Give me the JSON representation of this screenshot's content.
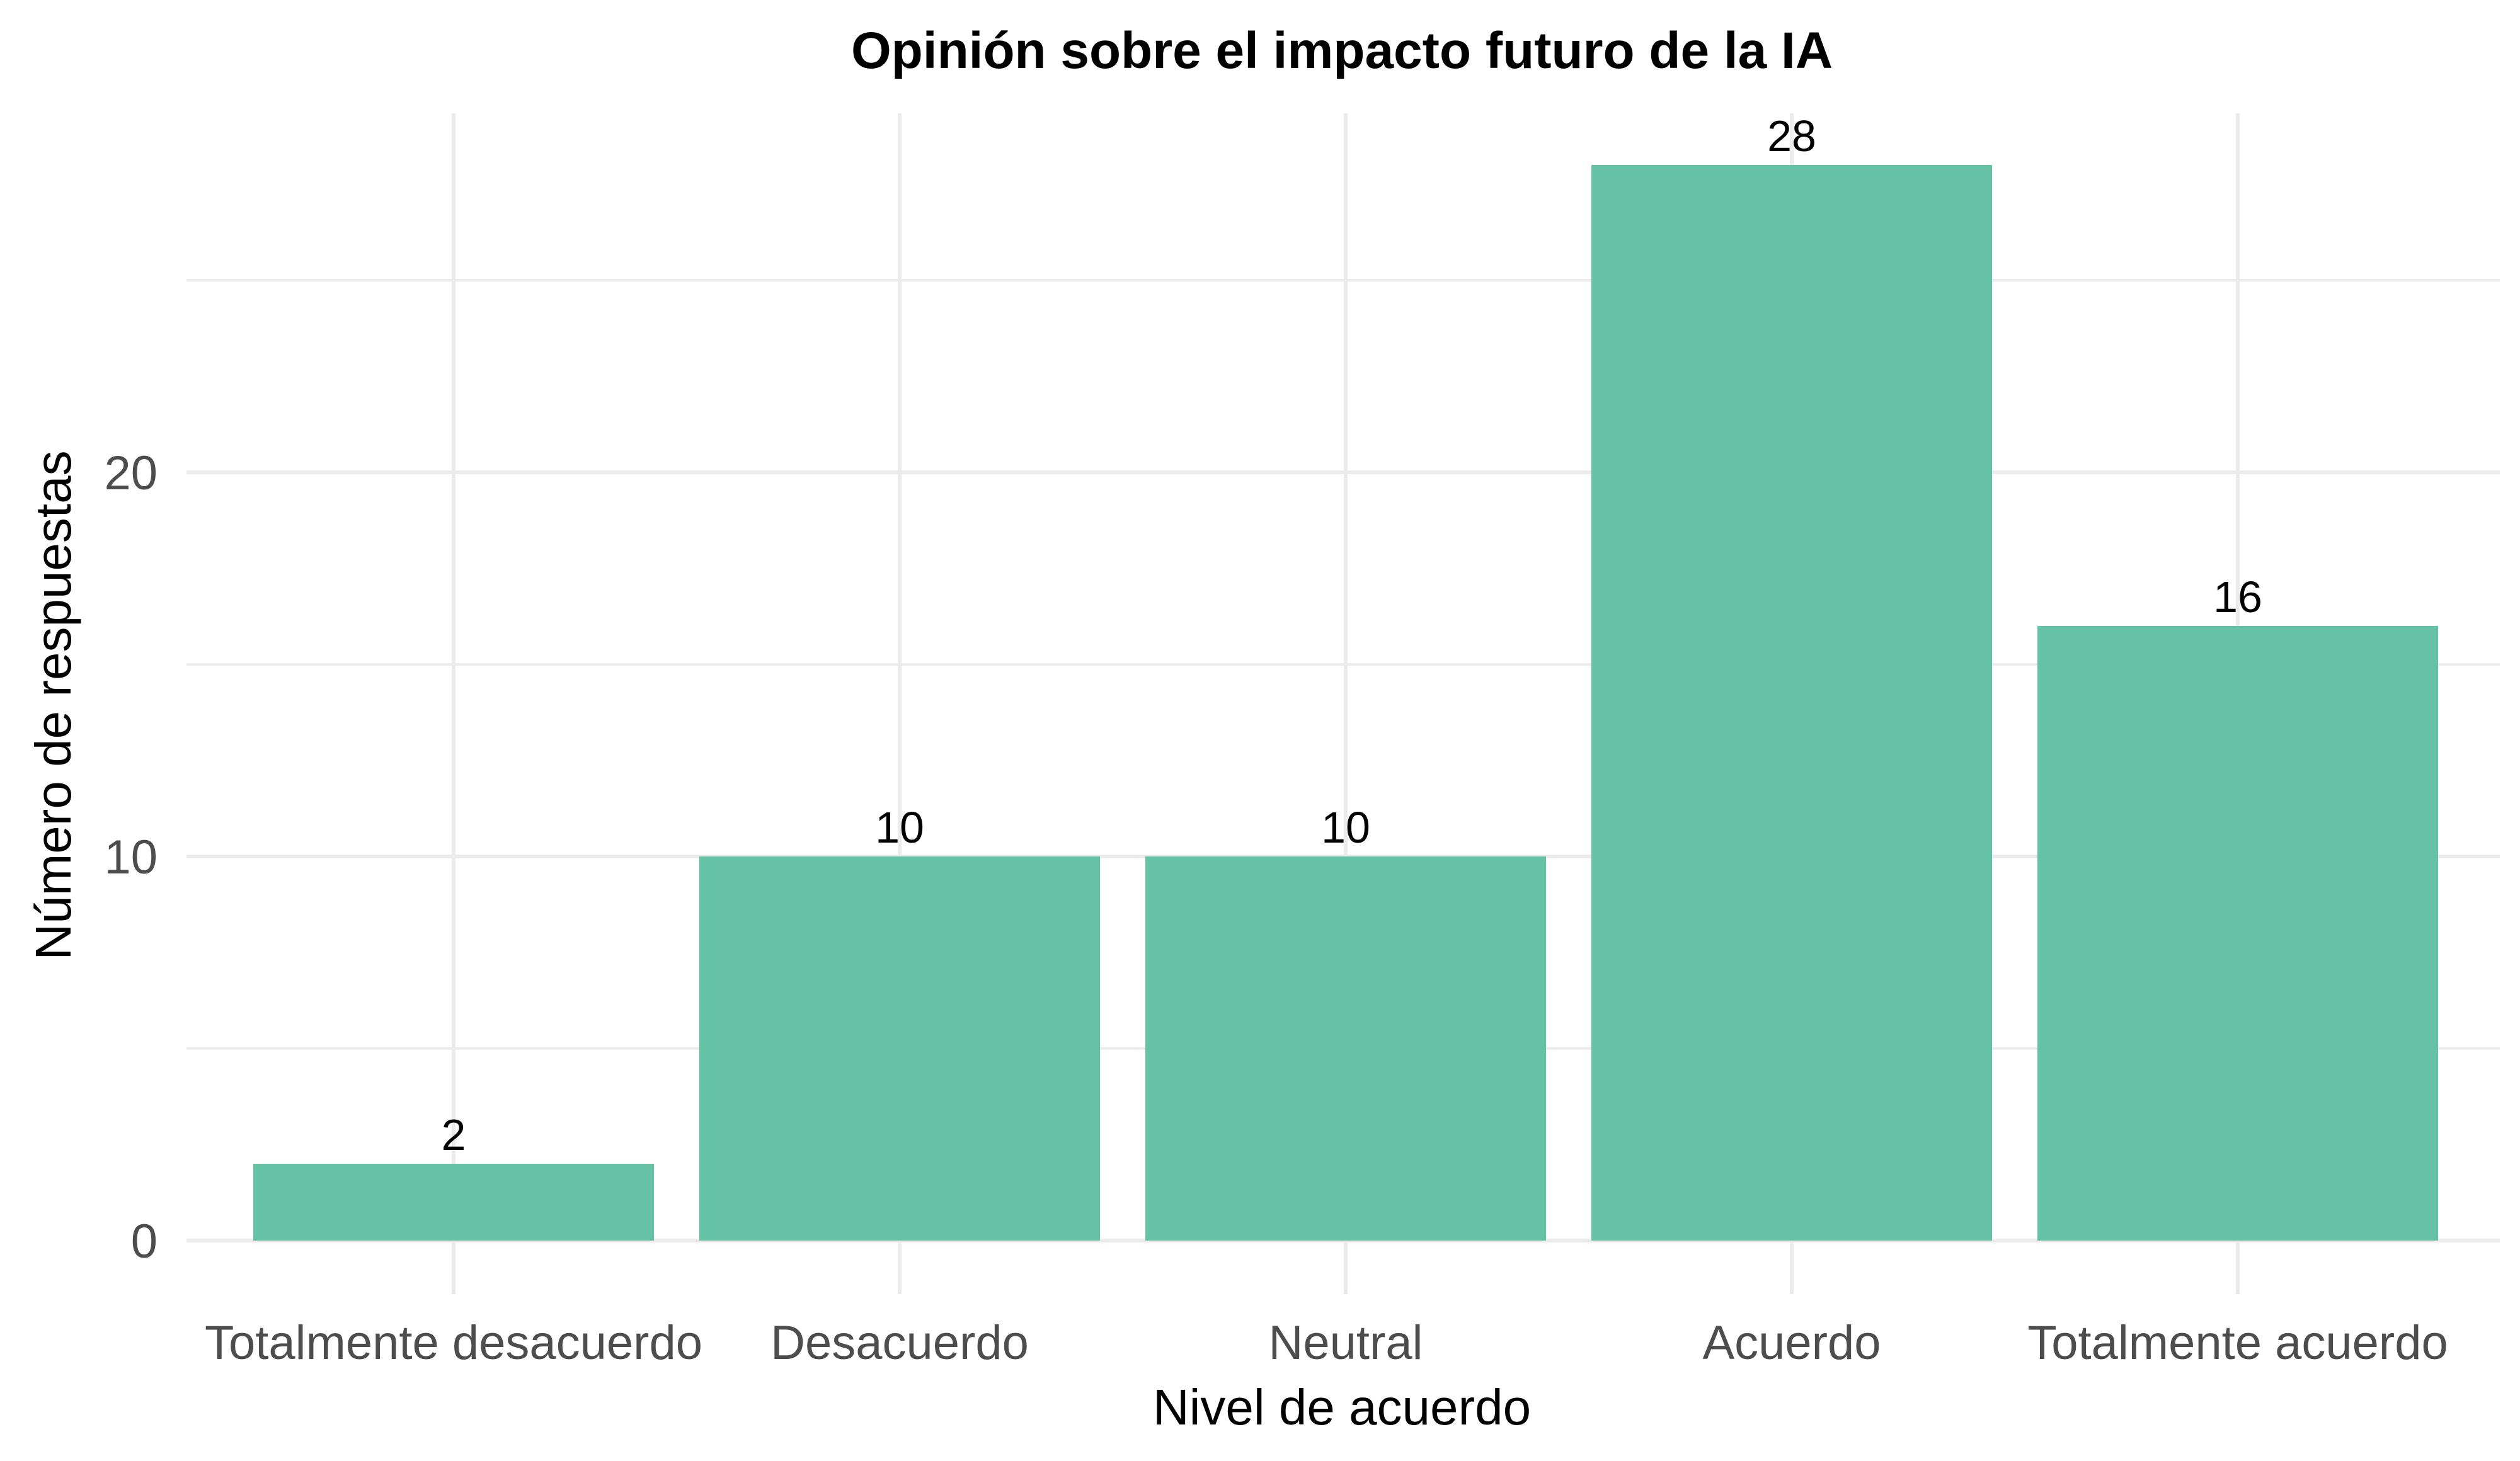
{
  "chart_data": {
    "type": "bar",
    "title": "Opinión sobre el impacto futuro de la IA",
    "xlabel": "Nivel de acuerdo",
    "ylabel": "Número de respuestas",
    "categories": [
      "Totalmente desacuerdo",
      "Desacuerdo",
      "Neutral",
      "Acuerdo",
      "Totalmente acuerdo"
    ],
    "values": [
      2,
      10,
      10,
      28,
      16
    ],
    "data_labels": [
      "2",
      "10",
      "10",
      "28",
      "16"
    ],
    "ylim": [
      0,
      28
    ],
    "y_ticks": [
      0,
      10,
      20
    ],
    "y_tick_labels": [
      "0",
      "10",
      "20"
    ],
    "y_minor_ticks": [
      5,
      15,
      25
    ],
    "grid": true,
    "legend": "none",
    "bar_color": "#66c2a5"
  }
}
